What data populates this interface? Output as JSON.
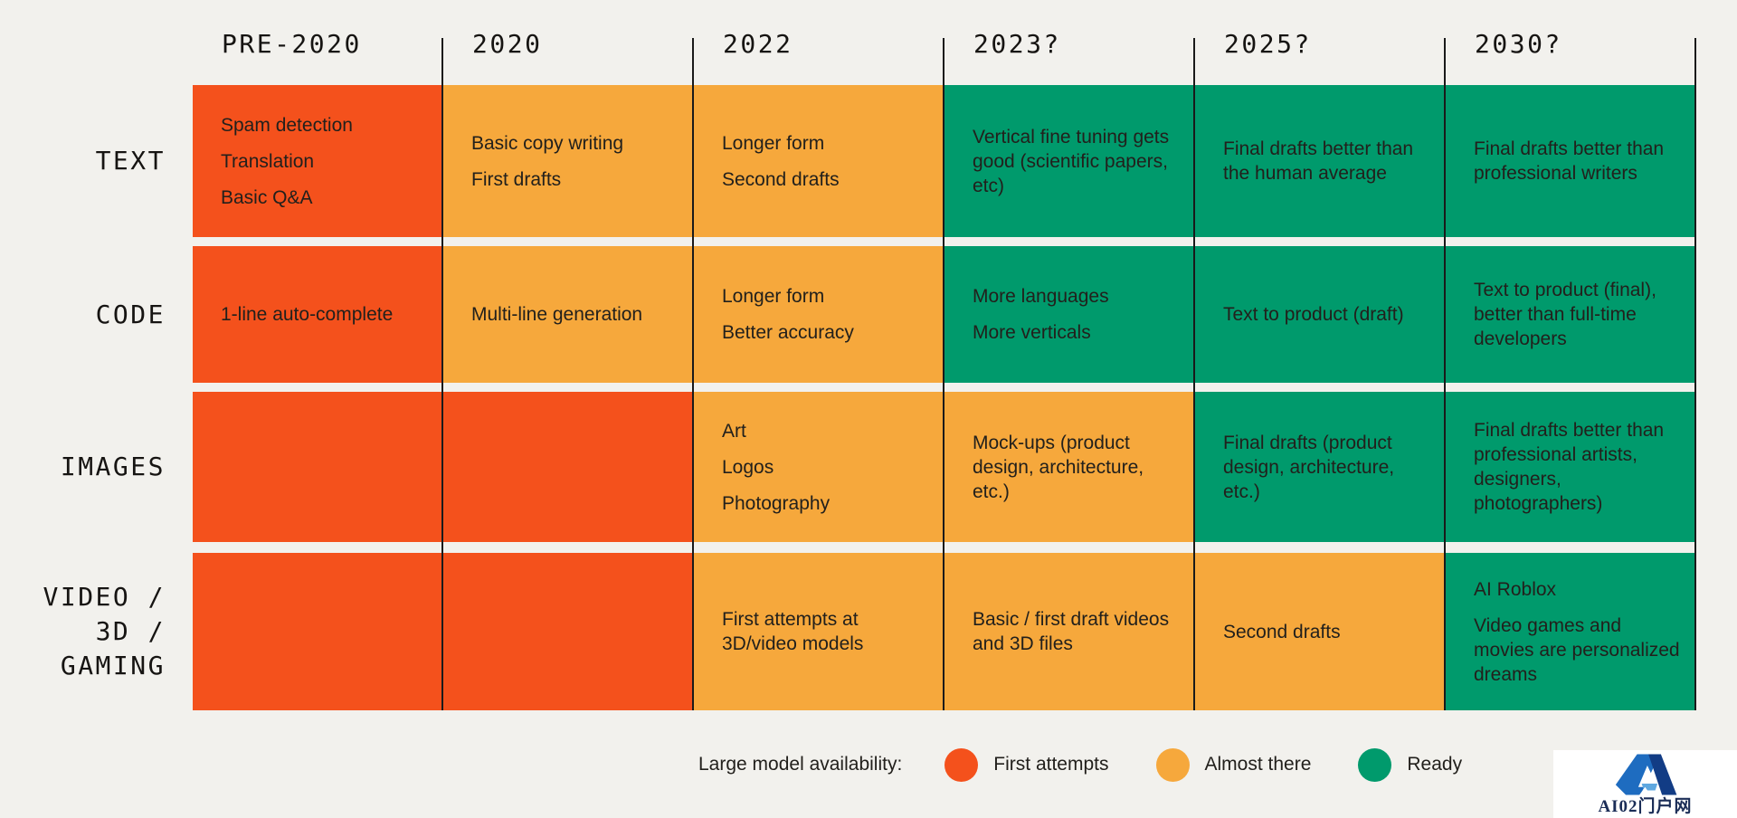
{
  "colors": {
    "background": "#F2F1ED",
    "first_attempts": "#F4511C",
    "almost_there": "#F6A83C",
    "ready": "#009A6C",
    "grid_line": "#1A1A1A",
    "cell_text": "#22201C",
    "label_text": "#161412",
    "watermark_text": "#1B2D57",
    "watermark_blue_light": "#1E6CC0",
    "watermark_blue_mid": "#5FA8E0",
    "watermark_blue_dark": "#123C85"
  },
  "chart_data": {
    "type": "table",
    "title": "Large model availability:",
    "grid": "vertical-lines",
    "legend_position": "bottom",
    "columns": [
      "PRE-2020",
      "2020",
      "2022",
      "2023?",
      "2025?",
      "2030?"
    ],
    "status_values": [
      "first_attempts",
      "almost_there",
      "ready"
    ],
    "rows": [
      {
        "label": "TEXT",
        "label_lines": [
          "TEXT"
        ],
        "cells": [
          {
            "status": "first_attempts",
            "items": [
              "Spam detection",
              "Translation",
              "Basic Q&A"
            ]
          },
          {
            "status": "almost_there",
            "items": [
              "Basic copy writing",
              "First drafts"
            ]
          },
          {
            "status": "almost_there",
            "items": [
              "Longer form",
              "Second drafts"
            ]
          },
          {
            "status": "ready",
            "items": [
              "Vertical fine tuning gets good (scientific papers, etc)"
            ]
          },
          {
            "status": "ready",
            "items": [
              "Final drafts better than the human average"
            ]
          },
          {
            "status": "ready",
            "items": [
              "Final drafts better than professional writers"
            ]
          }
        ]
      },
      {
        "label": "CODE",
        "label_lines": [
          "CODE"
        ],
        "cells": [
          {
            "status": "first_attempts",
            "items": [
              "1-line auto-complete"
            ]
          },
          {
            "status": "almost_there",
            "items": [
              "Multi-line generation"
            ]
          },
          {
            "status": "almost_there",
            "items": [
              "Longer form",
              "Better accuracy"
            ]
          },
          {
            "status": "ready",
            "items": [
              "More languages",
              "More verticals"
            ]
          },
          {
            "status": "ready",
            "items": [
              "Text to product (draft)"
            ]
          },
          {
            "status": "ready",
            "items": [
              "Text to product (final), better than full-time developers"
            ]
          }
        ]
      },
      {
        "label": "IMAGES",
        "label_lines": [
          "IMAGES"
        ],
        "cells": [
          {
            "status": "first_attempts",
            "items": []
          },
          {
            "status": "first_attempts",
            "items": []
          },
          {
            "status": "almost_there",
            "items": [
              "Art",
              "Logos",
              "Photography"
            ]
          },
          {
            "status": "almost_there",
            "items": [
              "Mock-ups (product design, architecture, etc.)"
            ]
          },
          {
            "status": "ready",
            "items": [
              "Final drafts (product design, architecture, etc.)"
            ]
          },
          {
            "status": "ready",
            "items": [
              "Final drafts better than professional artists, designers, photographers)"
            ]
          }
        ]
      },
      {
        "label": "VIDEO / 3D / GAMING",
        "label_lines": [
          "VIDEO /",
          "3D /",
          "GAMING"
        ],
        "cells": [
          {
            "status": "first_attempts",
            "items": []
          },
          {
            "status": "first_attempts",
            "items": []
          },
          {
            "status": "almost_there",
            "items": [
              "First attempts at 3D/video models"
            ]
          },
          {
            "status": "almost_there",
            "items": [
              "Basic / first draft videos and 3D files"
            ]
          },
          {
            "status": "almost_there",
            "items": [
              "Second drafts"
            ]
          },
          {
            "status": "ready",
            "items": [
              "AI Roblox",
              "Video games and movies are personalized dreams"
            ]
          }
        ]
      }
    ]
  },
  "legend": {
    "title": "Large model availability:",
    "items": [
      {
        "label": "First attempts",
        "status": "first_attempts"
      },
      {
        "label": "Almost there",
        "status": "almost_there"
      },
      {
        "label": "Ready",
        "status": "ready"
      }
    ]
  },
  "watermark": {
    "logo_icon": "blue-letter-a-logo",
    "text": "AI02门户网"
  }
}
